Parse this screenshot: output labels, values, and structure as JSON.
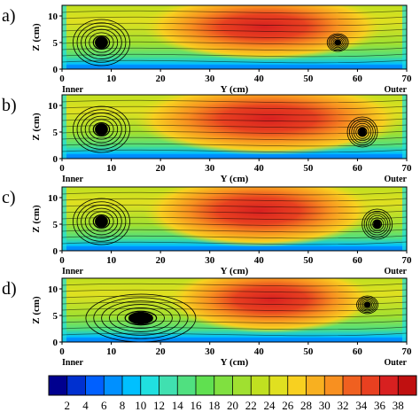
{
  "chart_data": {
    "type": "heatmap",
    "panels": [
      {
        "label": "a)",
        "vortices": [
          {
            "y": 8,
            "z": 5,
            "size": "large",
            "rotation": "clockwise"
          },
          {
            "y": 56,
            "z": 5,
            "size": "small",
            "rotation": "counterclockwise"
          }
        ],
        "warm_zone": {
          "y": [
            20,
            62
          ],
          "z": [
            4,
            12
          ]
        }
      },
      {
        "label": "b)",
        "vortices": [
          {
            "y": 8,
            "z": 5.5,
            "size": "large",
            "rotation": "clockwise"
          },
          {
            "y": 61,
            "z": 5,
            "size": "medium",
            "rotation": "counterclockwise"
          }
        ],
        "warm_zone": {
          "y": [
            18,
            66
          ],
          "z": [
            3,
            12
          ]
        }
      },
      {
        "label": "c)",
        "vortices": [
          {
            "y": 8,
            "z": 5.5,
            "size": "large",
            "rotation": "clockwise"
          },
          {
            "y": 64,
            "z": 5,
            "size": "medium",
            "rotation": "counterclockwise"
          }
        ],
        "warm_zone": {
          "y": [
            20,
            60
          ],
          "z": [
            3,
            12
          ]
        }
      },
      {
        "label": "d)",
        "vortices": [
          {
            "y": 16,
            "z": 4.5,
            "size": "large",
            "rotation": "clockwise"
          },
          {
            "y": 62,
            "z": 7,
            "size": "small",
            "rotation": "counterclockwise"
          }
        ],
        "warm_zone": {
          "y": [
            25,
            60
          ],
          "z": [
            4,
            12
          ]
        }
      }
    ],
    "xlabel": "Y (cm)",
    "ylabel": "Z (cm)",
    "x_ticks": [
      0,
      10,
      20,
      30,
      40,
      50,
      60,
      70
    ],
    "y_ticks": [
      0,
      5,
      10
    ],
    "xlim": [
      0,
      70
    ],
    "ylim": [
      0,
      12
    ],
    "x_end_labels": {
      "left": "Inner",
      "right": "Outer"
    },
    "colorbar": {
      "ticks": [
        2,
        4,
        6,
        8,
        10,
        12,
        14,
        16,
        18,
        20,
        22,
        24,
        26,
        28,
        30,
        32,
        34,
        36,
        38
      ],
      "range": [
        0,
        40
      ],
      "colors": [
        "#00008f",
        "#0030d0",
        "#0060ff",
        "#0090ff",
        "#00c0ff",
        "#20e0e0",
        "#40e0b0",
        "#50e080",
        "#60e050",
        "#80e040",
        "#a0e030",
        "#c0e020",
        "#e0e020",
        "#f8d020",
        "#f8b020",
        "#f89020",
        "#f06020",
        "#e84020",
        "#d82020",
        "#c01010"
      ]
    }
  }
}
